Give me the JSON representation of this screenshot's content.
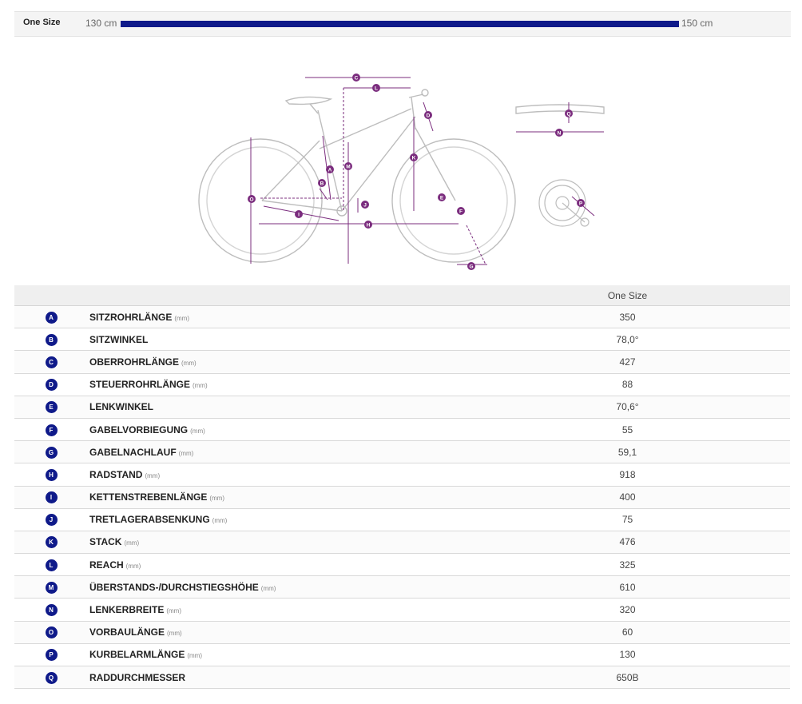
{
  "size_row": {
    "label": "One Size",
    "min_height": "130 cm",
    "max_height": "150 cm",
    "fill_fraction": 1.0,
    "bar_color": "#0f1a8a"
  },
  "diagram": {
    "marker_color": "#7b2d7e",
    "bike_line_color": "#bdbdbd",
    "markers": [
      "C",
      "L",
      "D",
      "K",
      "M",
      "A",
      "B",
      "O",
      "J",
      "I",
      "H",
      "E",
      "F",
      "G",
      "Q",
      "N",
      "P"
    ]
  },
  "table": {
    "header_size": "One Size",
    "badge_color": "#0f1a8a",
    "rows": [
      {
        "letter": "A",
        "name": "SITZROHRLÄNGE",
        "unit": "(mm)",
        "value": "350"
      },
      {
        "letter": "B",
        "name": "SITZWINKEL",
        "unit": "",
        "value": "78,0°"
      },
      {
        "letter": "C",
        "name": "OBERROHRLÄNGE",
        "unit": "(mm)",
        "value": "427"
      },
      {
        "letter": "D",
        "name": "STEUERROHRLÄNGE",
        "unit": "(mm)",
        "value": "88"
      },
      {
        "letter": "E",
        "name": "LENKWINKEL",
        "unit": "",
        "value": "70,6°"
      },
      {
        "letter": "F",
        "name": "GABELVORBIEGUNG",
        "unit": "(mm)",
        "value": "55"
      },
      {
        "letter": "G",
        "name": "GABELNACHLAUF",
        "unit": "(mm)",
        "value": "59,1"
      },
      {
        "letter": "H",
        "name": "RADSTAND",
        "unit": "(mm)",
        "value": "918"
      },
      {
        "letter": "I",
        "name": "KETTENSTREBENLÄNGE",
        "unit": "(mm)",
        "value": "400"
      },
      {
        "letter": "J",
        "name": "TRETLAGERABSENKUNG",
        "unit": "(mm)",
        "value": "75"
      },
      {
        "letter": "K",
        "name": "STACK",
        "unit": "(mm)",
        "value": "476"
      },
      {
        "letter": "L",
        "name": "REACH",
        "unit": "(mm)",
        "value": "325"
      },
      {
        "letter": "M",
        "name": "ÜBERSTANDS-/DURCHSTIEGSHÖHE",
        "unit": "(mm)",
        "value": "610"
      },
      {
        "letter": "N",
        "name": "LENKERBREITE",
        "unit": "(mm)",
        "value": "320"
      },
      {
        "letter": "O",
        "name": "VORBAULÄNGE",
        "unit": "(mm)",
        "value": "60"
      },
      {
        "letter": "P",
        "name": "KURBELARMLÄNGE",
        "unit": "(mm)",
        "value": "130"
      },
      {
        "letter": "Q",
        "name": "RADDURCHMESSER",
        "unit": "",
        "value": "650B"
      }
    ]
  }
}
